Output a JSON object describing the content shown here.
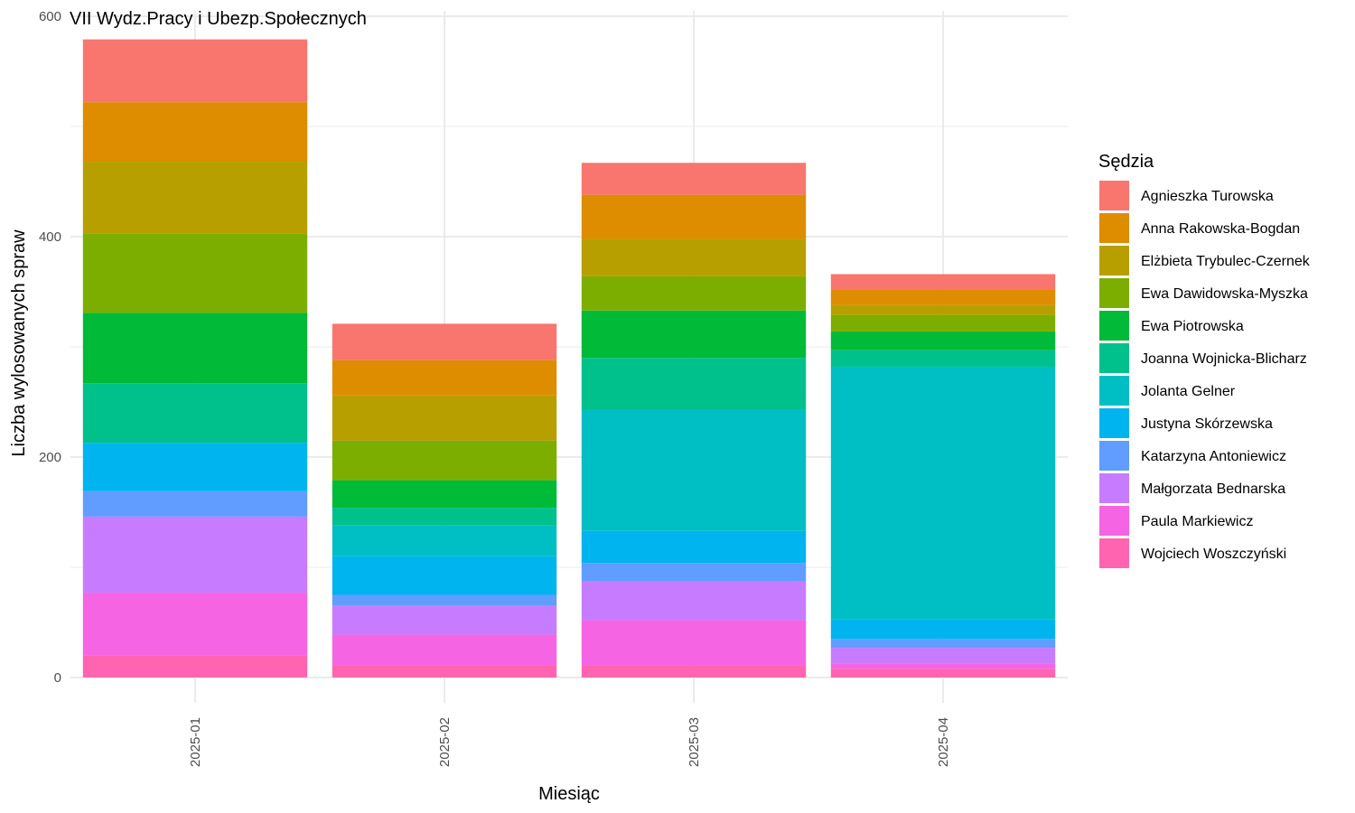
{
  "chart_data": {
    "type": "bar",
    "stacked": true,
    "title": "VII Wydz.Pracy i Ubezp.Społecznych",
    "xlabel": "Miesiąc",
    "ylabel": "Liczba wylosowanych spraw",
    "ylim": [
      0,
      600
    ],
    "yticks": [
      "0",
      "200",
      "400",
      "600"
    ],
    "grid": true,
    "legend": {
      "title": "Sędzia",
      "position": "right"
    },
    "categories": [
      "2025-01",
      "2025-02",
      "2025-03",
      "2025-04"
    ],
    "series": [
      {
        "name": "Agnieszka Turowska",
        "color": "#F8766D",
        "values": [
          57,
          33,
          29,
          14
        ]
      },
      {
        "name": "Anna Rakowska-Bogdan",
        "color": "#DE8C00",
        "values": [
          54,
          32,
          40,
          14
        ]
      },
      {
        "name": "Elżbieta Trybulec-Czernek",
        "color": "#B79F00",
        "values": [
          65,
          41,
          34,
          9
        ]
      },
      {
        "name": "Ewa Dawidowska-Myszka",
        "color": "#7CAE00",
        "values": [
          72,
          36,
          31,
          15
        ]
      },
      {
        "name": "Ewa Piotrowska",
        "color": "#00BA38",
        "values": [
          64,
          25,
          43,
          17
        ]
      },
      {
        "name": "Joanna Wojnicka-Blicharz",
        "color": "#00C08B",
        "values": [
          54,
          16,
          47,
          15
        ]
      },
      {
        "name": "Jolanta Gelner",
        "color": "#00BFC4",
        "values": [
          0,
          28,
          110,
          229
        ]
      },
      {
        "name": "Justyna Skórzewska",
        "color": "#00B4F0",
        "values": [
          44,
          35,
          29,
          18
        ]
      },
      {
        "name": "Katarzyna Antoniewicz",
        "color": "#619CFF",
        "values": [
          23,
          10,
          17,
          8
        ]
      },
      {
        "name": "Małgorzata Bednarska",
        "color": "#C77CFF",
        "values": [
          69,
          26,
          35,
          14
        ]
      },
      {
        "name": "Paula Markiewicz",
        "color": "#F564E3",
        "values": [
          57,
          28,
          41,
          5
        ]
      },
      {
        "name": "Wojciech Woszczyński",
        "color": "#FF64B0",
        "values": [
          20,
          11,
          11,
          8
        ]
      }
    ]
  }
}
